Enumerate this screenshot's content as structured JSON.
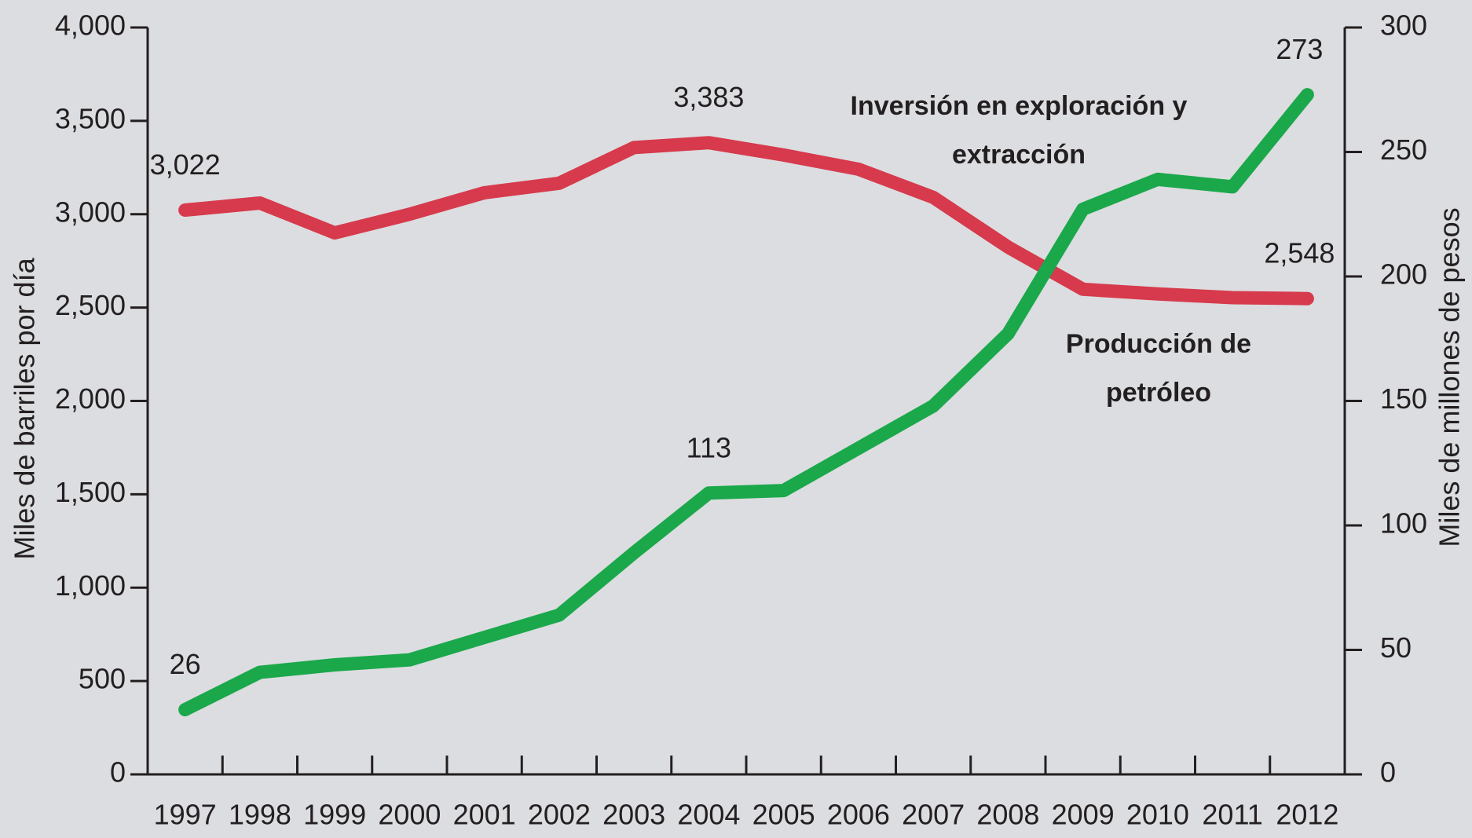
{
  "chart_data": {
    "type": "line",
    "categories": [
      "1997",
      "1998",
      "1999",
      "2000",
      "2001",
      "2002",
      "2003",
      "2004",
      "2005",
      "2006",
      "2007",
      "2008",
      "2009",
      "2010",
      "2011",
      "2012"
    ],
    "ylabel": "Miles de barriles por día",
    "y2label": "Miles de millones de pesos",
    "ylim": [
      0,
      4000
    ],
    "yticks": [
      0,
      500,
      {
        "value": 1000,
        "label": "1,000"
      },
      {
        "value": 1500,
        "label": "1,500"
      },
      {
        "value": 2000,
        "label": "2,000"
      },
      {
        "value": 2500,
        "label": "2,500"
      },
      {
        "value": 3000,
        "label": "3,000"
      },
      {
        "value": 3500,
        "label": "3,500"
      },
      {
        "value": 4000,
        "label": "4,000"
      }
    ],
    "y2lim": [
      0,
      300
    ],
    "y2ticks": [
      0,
      50,
      100,
      150,
      200,
      250,
      300
    ],
    "series": [
      {
        "label": [
          "Producción de",
          "petróleo"
        ],
        "color": "#d63a4c",
        "axis": "y",
        "values": [
          3022,
          3060,
          2900,
          3000,
          3115,
          3166,
          3357,
          3383,
          3317,
          3241,
          3090,
          2824,
          2598,
          2573,
          2553,
          2548
        ],
        "value_labels": [
          "3,022",
          null,
          null,
          null,
          null,
          null,
          null,
          "3,383",
          null,
          null,
          null,
          null,
          null,
          null,
          null,
          "2,548"
        ]
      },
      {
        "label": [
          "Inversión en exploración y",
          "extracción"
        ],
        "color": "#1aa84b",
        "axis": "y2",
        "values": [
          26,
          41,
          44,
          46,
          55,
          64,
          89,
          113,
          114,
          131,
          148,
          177,
          227,
          239,
          236,
          273
        ],
        "value_labels": [
          "26",
          null,
          null,
          null,
          null,
          null,
          null,
          "113",
          null,
          null,
          null,
          null,
          null,
          null,
          null,
          "273"
        ]
      }
    ]
  }
}
